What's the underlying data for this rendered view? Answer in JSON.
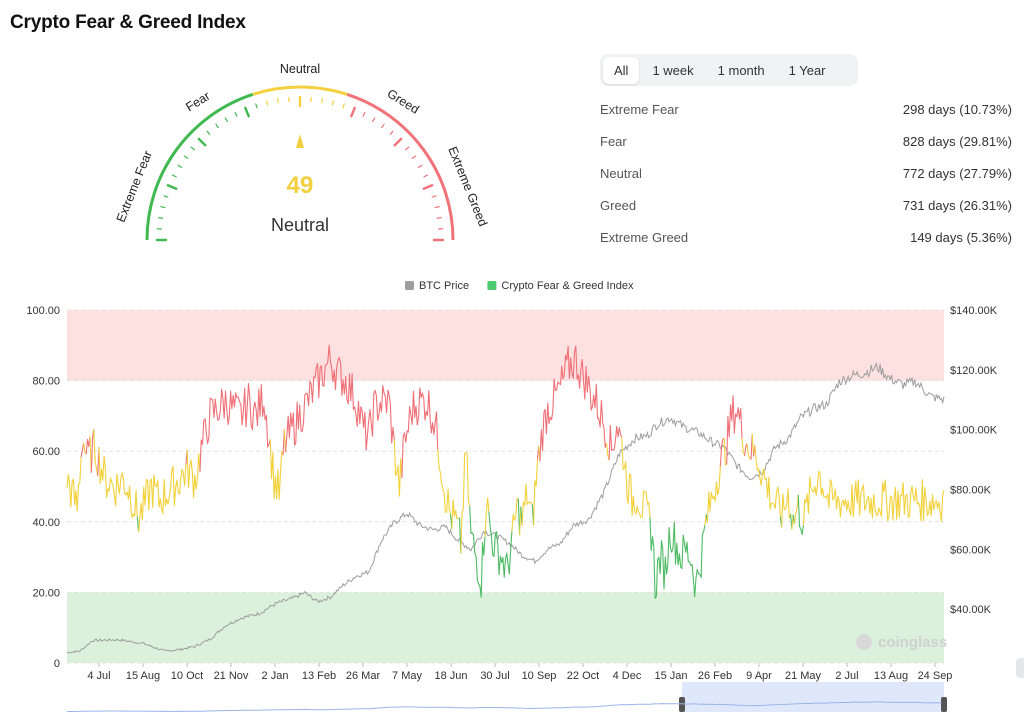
{
  "page": {
    "title": "Crypto Fear & Greed Index"
  },
  "gauge": {
    "value": 49,
    "value_text": "49",
    "label": "Neutral",
    "zone_labels": [
      "Extreme Fear",
      "Fear",
      "Neutral",
      "Greed",
      "Extreme Greed"
    ],
    "colors": {
      "green": "#3fb950",
      "yellow": "#f4d03f",
      "red": "#f0737a",
      "value": "#f2cf3f"
    }
  },
  "tabs": [
    {
      "label": "All",
      "active": true
    },
    {
      "label": "1 week",
      "active": false
    },
    {
      "label": "1 month",
      "active": false
    },
    {
      "label": "1 Year",
      "active": false
    }
  ],
  "stats": [
    {
      "label": "Extreme Fear",
      "value": "298 days (10.73%)"
    },
    {
      "label": "Fear",
      "value": "828 days (29.81%)"
    },
    {
      "label": "Neutral",
      "value": "772 days (27.79%)"
    },
    {
      "label": "Greed",
      "value": "731 days (26.31%)"
    },
    {
      "label": "Extreme Greed",
      "value": "149 days (5.36%)"
    }
  ],
  "chart_data": {
    "type": "line",
    "legend": [
      {
        "name": "BTC Price",
        "color": "#9e9e9e"
      },
      {
        "name": "Crypto Fear & Greed Index",
        "color": "#4ecb71"
      }
    ],
    "legend_position": "top-center",
    "y_left": {
      "ticks": [
        "0",
        "20.00",
        "40.00",
        "60.00",
        "80.00",
        "100.00"
      ],
      "range": [
        0,
        100
      ]
    },
    "y_right": {
      "ticks": [
        "$40.00K",
        "$60.00K",
        "$80.00K",
        "$100.00K",
        "$120.00K",
        "$140.00K"
      ],
      "range": [
        22000,
        140000
      ]
    },
    "x_ticks": [
      "4 Jul",
      "15 Aug",
      "10 Oct",
      "21 Nov",
      "2 Jan",
      "13 Feb",
      "26 Mar",
      "7 May",
      "18 Jun",
      "30 Jul",
      "10 Sep",
      "22 Oct",
      "4 Dec",
      "15 Jan",
      "26 Feb",
      "9 Apr",
      "21 May",
      "2 Jul",
      "13 Aug",
      "24 Sep"
    ],
    "bands": [
      {
        "from": 80,
        "to": 100,
        "color": "#fde0e0"
      },
      {
        "from": 0,
        "to": 20,
        "color": "#dcf1dc"
      }
    ],
    "thresholds": [
      {
        "max": 40,
        "color": "#4cbb63"
      },
      {
        "max": 60,
        "color": "#f2d13b"
      },
      {
        "max": 100,
        "color": "#f07077"
      }
    ],
    "fng_keypoints": [
      [
        0,
        52
      ],
      [
        8,
        44
      ],
      [
        12,
        64
      ],
      [
        16,
        58
      ],
      [
        22,
        61
      ],
      [
        30,
        52
      ],
      [
        38,
        50
      ],
      [
        44,
        52
      ],
      [
        50,
        48
      ],
      [
        56,
        41
      ],
      [
        60,
        44
      ],
      [
        66,
        50
      ],
      [
        72,
        46
      ],
      [
        80,
        49
      ],
      [
        88,
        52
      ],
      [
        94,
        55
      ],
      [
        100,
        52
      ],
      [
        106,
        62
      ],
      [
        112,
        70
      ],
      [
        118,
        72
      ],
      [
        124,
        74
      ],
      [
        130,
        72
      ],
      [
        136,
        70
      ],
      [
        142,
        74
      ],
      [
        148,
        70
      ],
      [
        154,
        76
      ],
      [
        158,
        64
      ],
      [
        162,
        52
      ],
      [
        166,
        48
      ],
      [
        170,
        62
      ],
      [
        176,
        66
      ],
      [
        182,
        70
      ],
      [
        188,
        74
      ],
      [
        194,
        78
      ],
      [
        200,
        82
      ],
      [
        206,
        86
      ],
      [
        212,
        82
      ],
      [
        218,
        80
      ],
      [
        224,
        76
      ],
      [
        228,
        72
      ],
      [
        232,
        66
      ],
      [
        236,
        64
      ],
      [
        240,
        72
      ],
      [
        246,
        74
      ],
      [
        252,
        74
      ],
      [
        256,
        60
      ],
      [
        260,
        50
      ],
      [
        264,
        62
      ],
      [
        270,
        72
      ],
      [
        276,
        74
      ],
      [
        282,
        74
      ],
      [
        288,
        68
      ],
      [
        292,
        58
      ],
      [
        296,
        48
      ],
      [
        300,
        42
      ],
      [
        304,
        40
      ],
      [
        308,
        34
      ],
      [
        312,
        60
      ],
      [
        316,
        36
      ],
      [
        320,
        30
      ],
      [
        324,
        24
      ],
      [
        328,
        46
      ],
      [
        332,
        36
      ],
      [
        336,
        32
      ],
      [
        340,
        30
      ],
      [
        344,
        26
      ],
      [
        348,
        34
      ],
      [
        352,
        44
      ],
      [
        356,
        40
      ],
      [
        360,
        48
      ],
      [
        364,
        40
      ],
      [
        368,
        56
      ],
      [
        372,
        66
      ],
      [
        376,
        72
      ],
      [
        380,
        74
      ],
      [
        386,
        78
      ],
      [
        392,
        84
      ],
      [
        398,
        86
      ],
      [
        402,
        82
      ],
      [
        406,
        80
      ],
      [
        410,
        76
      ],
      [
        414,
        74
      ],
      [
        418,
        70
      ],
      [
        422,
        66
      ],
      [
        426,
        60
      ],
      [
        430,
        68
      ],
      [
        434,
        62
      ],
      [
        438,
        52
      ],
      [
        442,
        46
      ],
      [
        446,
        48
      ],
      [
        450,
        44
      ],
      [
        454,
        42
      ],
      [
        458,
        36
      ],
      [
        460,
        22
      ],
      [
        464,
        30
      ],
      [
        468,
        26
      ],
      [
        472,
        38
      ],
      [
        476,
        34
      ],
      [
        480,
        30
      ],
      [
        484,
        32
      ],
      [
        488,
        30
      ],
      [
        492,
        22
      ],
      [
        496,
        30
      ],
      [
        500,
        40
      ],
      [
        504,
        46
      ],
      [
        508,
        52
      ],
      [
        512,
        58
      ],
      [
        516,
        62
      ],
      [
        520,
        70
      ],
      [
        524,
        72
      ],
      [
        528,
        66
      ],
      [
        532,
        62
      ],
      [
        536,
        60
      ],
      [
        540,
        58
      ],
      [
        544,
        54
      ],
      [
        548,
        50
      ],
      [
        552,
        46
      ],
      [
        556,
        44
      ],
      [
        560,
        42
      ],
      [
        564,
        48
      ],
      [
        568,
        40
      ],
      [
        572,
        44
      ],
      [
        576,
        40
      ],
      [
        580,
        46
      ],
      [
        584,
        50
      ],
      [
        588,
        54
      ],
      [
        592,
        50
      ],
      [
        596,
        46
      ]
    ],
    "fng_current": 49,
    "btc_keypoints": [
      [
        0,
        25500
      ],
      [
        10,
        26000
      ],
      [
        20,
        29500
      ],
      [
        40,
        29800
      ],
      [
        60,
        28500
      ],
      [
        76,
        26000
      ],
      [
        88,
        26500
      ],
      [
        100,
        27500
      ],
      [
        112,
        30000
      ],
      [
        124,
        34500
      ],
      [
        136,
        37000
      ],
      [
        150,
        38500
      ],
      [
        164,
        42000
      ],
      [
        176,
        43500
      ],
      [
        186,
        45500
      ],
      [
        196,
        42500
      ],
      [
        206,
        44000
      ],
      [
        216,
        48000
      ],
      [
        226,
        51000
      ],
      [
        236,
        52500
      ],
      [
        246,
        63000
      ],
      [
        256,
        69000
      ],
      [
        266,
        72000
      ],
      [
        276,
        68000
      ],
      [
        286,
        66500
      ],
      [
        296,
        67500
      ],
      [
        306,
        63000
      ],
      [
        316,
        60000
      ],
      [
        326,
        66000
      ],
      [
        336,
        64500
      ],
      [
        346,
        62000
      ],
      [
        356,
        58000
      ],
      [
        366,
        56000
      ],
      [
        376,
        60000
      ],
      [
        386,
        62000
      ],
      [
        396,
        68000
      ],
      [
        408,
        70000
      ],
      [
        420,
        79000
      ],
      [
        432,
        92000
      ],
      [
        444,
        97000
      ],
      [
        454,
        98000
      ],
      [
        462,
        102000
      ],
      [
        472,
        104000
      ],
      [
        482,
        101000
      ],
      [
        494,
        99000
      ],
      [
        504,
        96000
      ],
      [
        514,
        94000
      ],
      [
        524,
        88000
      ],
      [
        534,
        84000
      ],
      [
        544,
        86000
      ],
      [
        554,
        94000
      ],
      [
        564,
        97000
      ],
      [
        574,
        104000
      ],
      [
        584,
        107000
      ],
      [
        594,
        108500
      ],
      [
        604,
        116000
      ],
      [
        614,
        118000
      ],
      [
        624,
        119000
      ],
      [
        634,
        121000
      ],
      [
        644,
        117000
      ],
      [
        654,
        115000
      ],
      [
        664,
        116000
      ],
      [
        676,
        111000
      ],
      [
        686,
        110000
      ]
    ],
    "total_points": 687,
    "watermark": "coinglass"
  }
}
